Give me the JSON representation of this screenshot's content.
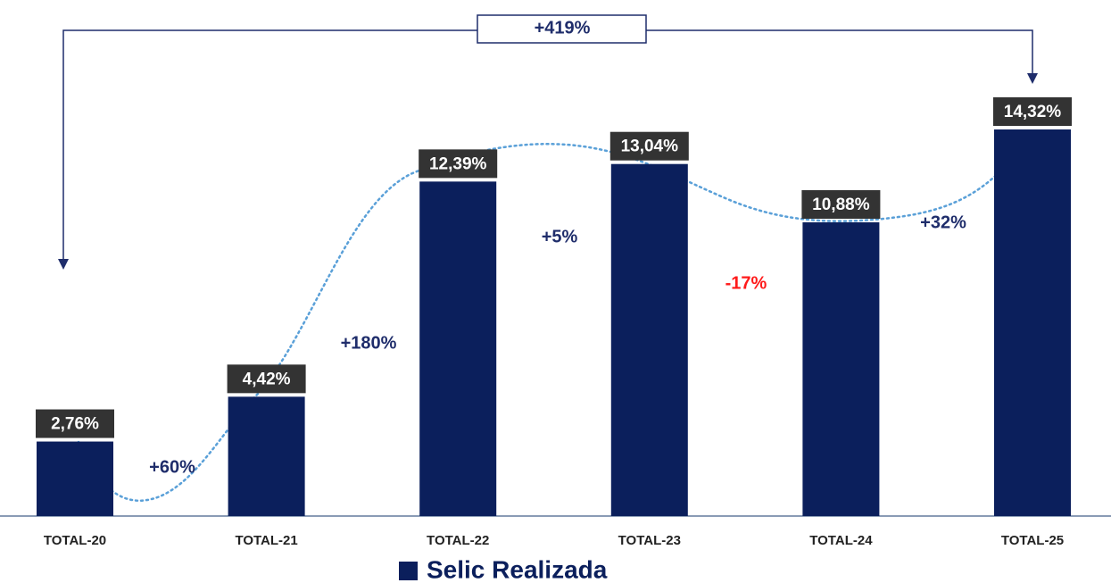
{
  "chart_data": {
    "type": "bar",
    "categories": [
      "TOTAL-20",
      "TOTAL-21",
      "TOTAL-22",
      "TOTAL-23",
      "TOTAL-24",
      "TOTAL-25"
    ],
    "series": [
      {
        "name": "Selic Realizada",
        "color": "#0b1f5c",
        "values": [
          2.76,
          4.42,
          12.39,
          13.04,
          10.88,
          14.32
        ],
        "value_labels": [
          "2,76%",
          "4,42%",
          "12,39%",
          "13,04%",
          "10,88%",
          "14,32%"
        ]
      }
    ],
    "annotations": [
      {
        "text": "+60%",
        "color": "#1f2d6b"
      },
      {
        "text": "+180%",
        "color": "#1f2d6b"
      },
      {
        "text": "+5%",
        "color": "#1f2d6b"
      },
      {
        "text": "-17%",
        "color": "#ff1a1a"
      },
      {
        "text": "+32%",
        "color": "#1f2d6b"
      },
      {
        "text": "+419%",
        "color": "#1f2d6b"
      }
    ]
  }
}
